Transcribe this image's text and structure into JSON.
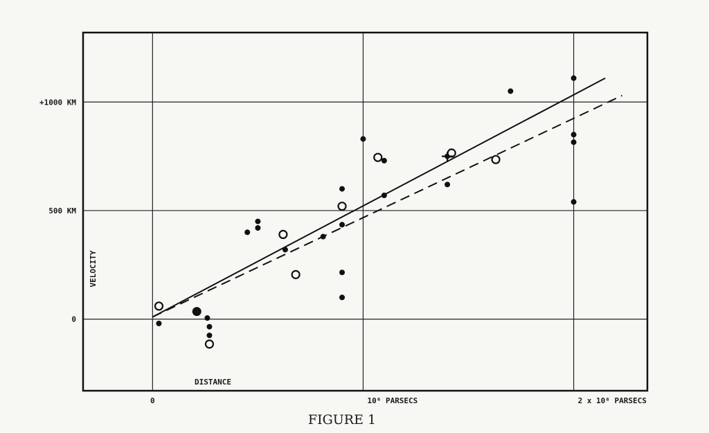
{
  "chart_data": {
    "type": "scatter",
    "title": "",
    "caption": "FIGURE 1",
    "xlabel": "DISTANCE",
    "ylabel": "VELOCITY",
    "xlim": [
      -0.33,
      2.35
    ],
    "ylim": [
      -330,
      1320
    ],
    "x_unit": "10^6 parsecs",
    "y_unit": "km/s",
    "grid": true,
    "x_ticks": [
      {
        "value": 0,
        "label": "0"
      },
      {
        "value": 1,
        "label": "10⁶ PARSECS"
      },
      {
        "value": 2,
        "label": "2 x 10⁶ PARSECS"
      }
    ],
    "y_ticks": [
      {
        "value": 0,
        "label": "0"
      },
      {
        "value": 500,
        "label": "500 KM"
      },
      {
        "value": 1000,
        "label": "+1000 KM"
      }
    ],
    "series": [
      {
        "marker": "filled-circle",
        "points": [
          {
            "x": 0.03,
            "y": -20
          },
          {
            "x": 0.21,
            "y": 35,
            "size": "large"
          },
          {
            "x": 0.26,
            "y": 5
          },
          {
            "x": 0.27,
            "y": -35
          },
          {
            "x": 0.27,
            "y": -75
          },
          {
            "x": 0.45,
            "y": 400
          },
          {
            "x": 0.5,
            "y": 450
          },
          {
            "x": 0.5,
            "y": 420
          },
          {
            "x": 0.63,
            "y": 320
          },
          {
            "x": 0.81,
            "y": 380
          },
          {
            "x": 0.9,
            "y": 600
          },
          {
            "x": 0.9,
            "y": 435
          },
          {
            "x": 0.9,
            "y": 215
          },
          {
            "x": 0.9,
            "y": 100
          },
          {
            "x": 1.0,
            "y": 830
          },
          {
            "x": 1.1,
            "y": 730
          },
          {
            "x": 1.1,
            "y": 570
          },
          {
            "x": 1.4,
            "y": 620
          },
          {
            "x": 1.4,
            "y": 750
          },
          {
            "x": 1.7,
            "y": 1050
          },
          {
            "x": 2.0,
            "y": 1110
          },
          {
            "x": 2.0,
            "y": 850
          },
          {
            "x": 2.0,
            "y": 815
          },
          {
            "x": 2.0,
            "y": 540
          }
        ]
      },
      {
        "marker": "open-circle",
        "points": [
          {
            "x": 0.03,
            "y": 60
          },
          {
            "x": 0.27,
            "y": -115
          },
          {
            "x": 0.62,
            "y": 390
          },
          {
            "x": 0.68,
            "y": 205
          },
          {
            "x": 0.9,
            "y": 520
          },
          {
            "x": 1.07,
            "y": 745
          },
          {
            "x": 1.42,
            "y": 765
          },
          {
            "x": 1.63,
            "y": 735
          }
        ]
      },
      {
        "marker": "cross",
        "points": [
          {
            "x": 1.4,
            "y": 750
          }
        ]
      }
    ],
    "fit_lines": [
      {
        "style": "solid",
        "x": [
          0,
          2.15
        ],
        "y": [
          10,
          1110
        ]
      },
      {
        "style": "dashed",
        "x": [
          0,
          2.23
        ],
        "y": [
          10,
          1030
        ]
      }
    ]
  }
}
